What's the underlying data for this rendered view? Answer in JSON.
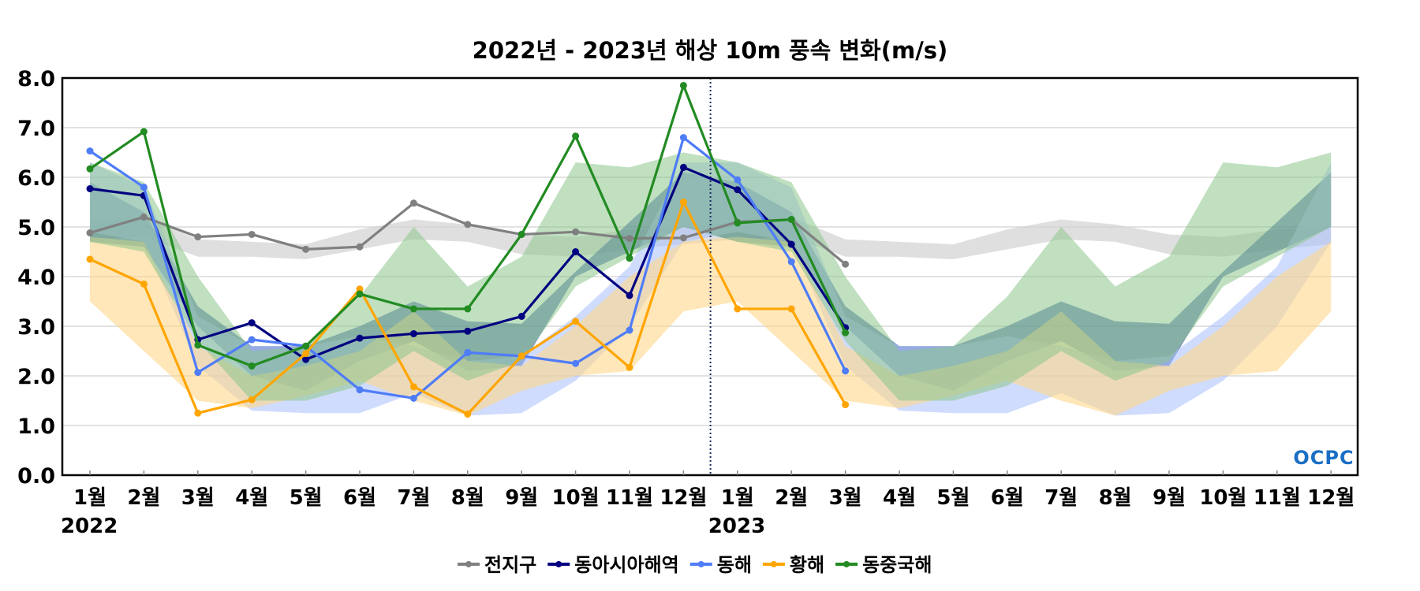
{
  "chart_data": {
    "type": "line",
    "title": "2022년 - 2023년 해상 10m 풍속 변화(m/s)",
    "xlabel": "",
    "ylabel": "",
    "ylim": [
      0,
      8
    ],
    "yticks": [
      "0.0",
      "1.0",
      "2.0",
      "3.0",
      "4.0",
      "5.0",
      "6.0",
      "7.0",
      "8.0"
    ],
    "grid": true,
    "legend_position": "bottom",
    "month_labels": [
      "1월",
      "2월",
      "3월",
      "4월",
      "5월",
      "6월",
      "7월",
      "8월",
      "9월",
      "10월",
      "11월",
      "12월"
    ],
    "years": [
      "2022",
      "2023"
    ],
    "year_divider": "between 2022-12 and 2023-01",
    "series": [
      {
        "name": "전지구",
        "color": "#808080",
        "band_color": "#d4d4d4",
        "values": [
          4.88,
          5.2,
          4.8,
          4.85,
          4.55,
          4.6,
          5.48,
          5.05,
          4.85,
          4.9,
          4.77,
          4.78,
          5.1,
          5.15,
          4.25,
          null,
          null,
          null,
          null,
          null,
          null,
          null,
          null,
          null
        ],
        "band_upper": [
          5.1,
          5.2,
          4.75,
          4.7,
          4.65,
          4.95,
          5.15,
          5.05,
          4.85,
          4.8,
          4.95,
          5.0
        ],
        "band_lower": [
          4.75,
          4.8,
          4.4,
          4.4,
          4.35,
          4.55,
          4.75,
          4.7,
          4.45,
          4.4,
          4.55,
          4.65
        ]
      },
      {
        "name": "동아시아해역",
        "color": "#000080",
        "band_color": "#2a4f9e",
        "values": [
          5.77,
          5.63,
          2.73,
          3.07,
          2.33,
          2.76,
          2.85,
          2.9,
          3.2,
          4.5,
          3.62,
          6.2,
          5.75,
          4.65,
          2.97,
          null,
          null,
          null,
          null,
          null,
          null,
          null,
          null,
          null
        ],
        "band_upper": [
          5.9,
          5.3,
          3.4,
          2.6,
          2.6,
          3.0,
          3.5,
          3.1,
          3.05,
          4.1,
          5.1,
          6.1
        ],
        "band_lower": [
          4.7,
          4.6,
          3.0,
          2.0,
          1.7,
          2.3,
          2.7,
          2.1,
          2.2,
          4.0,
          4.5,
          5.0
        ]
      },
      {
        "name": "동해",
        "color": "#4f7cf7",
        "band_color": "#a9bffb",
        "values": [
          6.53,
          5.8,
          2.07,
          2.73,
          2.6,
          1.72,
          1.55,
          2.47,
          2.4,
          2.25,
          2.92,
          6.8,
          5.95,
          4.3,
          2.1,
          null,
          null,
          null,
          null,
          null,
          null,
          null,
          null,
          null
        ],
        "band_upper": [
          6.3,
          5.8,
          3.2,
          2.6,
          2.6,
          2.8,
          2.6,
          2.3,
          2.4,
          3.2,
          4.2,
          6.3
        ],
        "band_lower": [
          4.9,
          4.7,
          2.2,
          1.3,
          1.25,
          1.25,
          1.65,
          1.2,
          1.25,
          1.9,
          3.0,
          4.7
        ]
      },
      {
        "name": "황해",
        "color": "#ffa500",
        "band_color": "#ffd78a",
        "values": [
          4.35,
          3.85,
          1.25,
          1.52,
          2.45,
          3.75,
          1.78,
          1.23,
          2.4,
          3.1,
          2.17,
          5.5,
          3.35,
          3.35,
          1.42,
          null,
          null,
          null,
          null,
          null,
          null,
          null,
          null,
          null
        ],
        "band_upper": [
          4.8,
          4.7,
          2.6,
          2.0,
          2.2,
          2.5,
          3.3,
          2.3,
          2.2,
          3.0,
          4.0,
          4.7
        ],
        "band_lower": [
          3.5,
          2.5,
          1.5,
          1.35,
          1.6,
          1.9,
          1.5,
          1.2,
          1.7,
          2.0,
          2.1,
          3.3
        ]
      },
      {
        "name": "동중국해",
        "color": "#228b22",
        "band_color": "#8cc78c",
        "values": [
          6.17,
          6.92,
          2.62,
          2.2,
          2.6,
          3.65,
          3.35,
          3.35,
          4.85,
          6.83,
          4.37,
          7.85,
          5.08,
          5.15,
          2.87,
          null,
          null,
          null,
          null,
          null,
          null,
          null,
          null,
          null
        ],
        "band_upper": [
          6.3,
          5.9,
          4.0,
          2.5,
          2.6,
          3.6,
          5.0,
          3.8,
          4.4,
          6.3,
          6.2,
          6.5
        ],
        "band_lower": [
          4.7,
          4.5,
          2.7,
          1.5,
          1.5,
          1.8,
          2.5,
          1.9,
          2.3,
          3.8,
          4.4,
          5.0
        ]
      }
    ]
  },
  "watermark": "OCPC"
}
